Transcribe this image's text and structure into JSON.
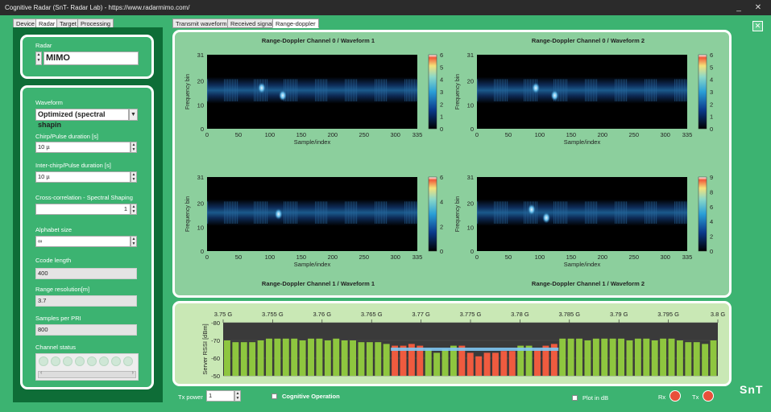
{
  "window": {
    "title": "Cognitive Radar  (SnT- Radar Lab) - https://www.radarmimo.com/",
    "minimize": "_",
    "close": "✕"
  },
  "left_tabs": [
    {
      "label": "Device"
    },
    {
      "label": "Radar"
    },
    {
      "label": "Target"
    },
    {
      "label": "Processing"
    }
  ],
  "right_tabs": [
    {
      "label": "Transmit waveform"
    },
    {
      "label": "Received signal"
    },
    {
      "label": "Range-doppler"
    }
  ],
  "radar": {
    "label": "Radar",
    "value": "MIMO"
  },
  "settings": {
    "waveform_label": "Waveform",
    "waveform_value": "Optimized (spectral shapin",
    "chirp_label": "Chirp/Pulse duration [s]",
    "chirp_value": "10 µ",
    "interchirp_label": "Inter-chirp/Pulse duration [s]",
    "interchirp_value": "10 µ",
    "xcorr_label": "Cross-correlation - Spectral Shaping",
    "xcorr_value": "1",
    "alphabet_label": "Alphabet size",
    "alphabet_value": "∞",
    "ccode_label": "Ccode length",
    "ccode_value": "400",
    "range_label": "Range resolution[m]",
    "range_value": "3.7",
    "samples_label": "Samples per PRI",
    "samples_value": "800",
    "channel_label": "Channel status"
  },
  "plots": [
    {
      "title": "Range-Doppler Channel 0 / Waveform 1",
      "ylabel": "Frequency bin",
      "xlabel": "Sample/index",
      "cbar_ticks": [
        "6",
        "5",
        "4",
        "3",
        "2",
        "1",
        "0"
      ]
    },
    {
      "title": "Range-Doppler Channel 0 / Waveform 2",
      "ylabel": "Frequency bin",
      "xlabel": "Sample/index",
      "cbar_ticks": [
        "6",
        "5",
        "4",
        "3",
        "2",
        "1",
        "0"
      ]
    },
    {
      "title": "Range-Doppler Channel 1 / Waveform 1",
      "ylabel": "Frequency bin",
      "xlabel": "Sample/index",
      "cbar_ticks": [
        "6",
        "4",
        "2",
        "0"
      ]
    },
    {
      "title": "Range-Doppler Channel 1 / Waveform 2",
      "ylabel": "Frequency bin",
      "xlabel": "Sample/index",
      "cbar_ticks": [
        "9",
        "8",
        "6",
        "4",
        "2",
        "0"
      ]
    }
  ],
  "plot_axes": {
    "xticks": [
      "0",
      "50",
      "100",
      "150",
      "200",
      "250",
      "300",
      "335"
    ],
    "yticks": [
      "31",
      "20",
      "10",
      "0"
    ]
  },
  "chart_data": {
    "type": "bar",
    "ylabel": "Server RSSI [dBm]",
    "ylim": [
      -50,
      -80
    ],
    "yticks": [
      "-80",
      "-70",
      "-60",
      "-50"
    ],
    "top_ticks": [
      "3.75 G",
      "3.755 G",
      "3.76 G",
      "3.765 G",
      "3.77 G",
      "3.775 G",
      "3.78 G",
      "3.785 G",
      "3.79 G",
      "3.795 G",
      "3.8 G"
    ],
    "values": [
      -70,
      -69,
      -69,
      -69,
      -70,
      -71,
      -71,
      -71,
      -71,
      -70,
      -71,
      -71,
      -70,
      -71,
      -70,
      -70,
      -69,
      -69,
      -69,
      -68,
      -67,
      -67,
      -68,
      -67,
      -65,
      -63,
      -65,
      -67,
      -67,
      -63,
      -61,
      -63,
      -63,
      -64,
      -64,
      -67,
      -67,
      -65,
      -67,
      -68,
      -71,
      -71,
      -71,
      -70,
      -71,
      -71,
      -71,
      -71,
      -70,
      -71,
      -71,
      -70,
      -71,
      -71,
      -70,
      -69,
      -69,
      -68,
      -70
    ],
    "occupied": [
      false,
      false,
      false,
      false,
      false,
      false,
      false,
      false,
      false,
      false,
      false,
      false,
      false,
      false,
      false,
      false,
      false,
      false,
      false,
      false,
      true,
      true,
      true,
      true,
      false,
      false,
      false,
      false,
      true,
      true,
      true,
      true,
      true,
      true,
      true,
      false,
      false,
      true,
      true,
      true,
      false,
      false,
      false,
      false,
      false,
      false,
      false,
      false,
      false,
      false,
      false,
      false,
      false,
      false,
      false,
      false,
      false,
      false,
      false
    ],
    "threshold": -65,
    "colors": {
      "free": "#8ec63f",
      "occupied": "#ef5b3f",
      "threshold": "#7fc6f2"
    }
  },
  "bottom": {
    "tx_power_label": "Tx power",
    "tx_power_value": "1",
    "cognitive_label": "Cognitive Operation",
    "plotdb_label": "Plot in dB",
    "rx_label": "Rx",
    "tx_label": "Tx",
    "logo": "SnT"
  }
}
